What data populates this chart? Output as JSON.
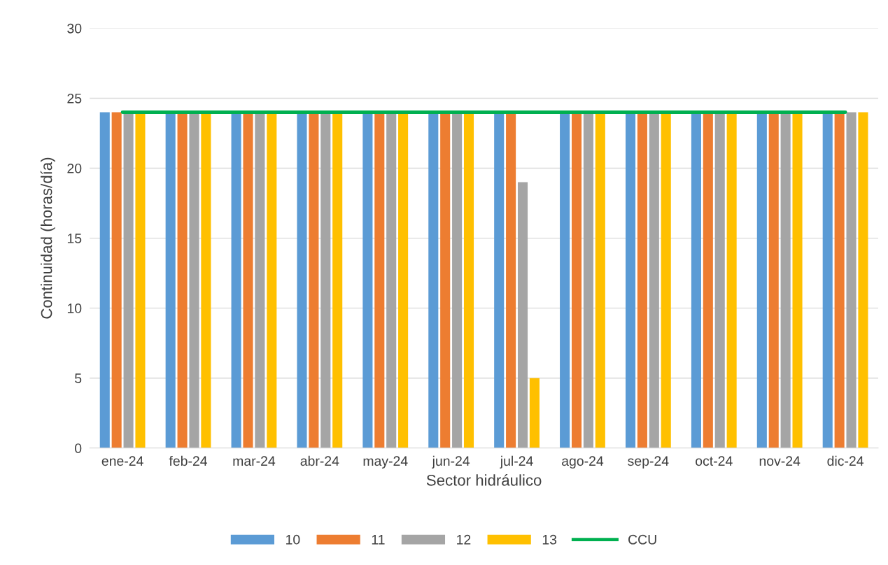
{
  "chart_data": {
    "type": "bar",
    "xlabel": "Sector hidráulico",
    "ylabel": "Continuidad (horas/día)",
    "categories": [
      "ene-24",
      "feb-24",
      "mar-24",
      "abr-24",
      "may-24",
      "jun-24",
      "jul-24",
      "ago-24",
      "sep-24",
      "oct-24",
      "nov-24",
      "dic-24"
    ],
    "series": [
      {
        "name": "10",
        "color": "#5b9bd5",
        "values": [
          24,
          24,
          24,
          24,
          24,
          24,
          24,
          24,
          24,
          24,
          24,
          24
        ]
      },
      {
        "name": "11",
        "color": "#ed7d31",
        "values": [
          24,
          24,
          24,
          24,
          24,
          24,
          24,
          24,
          24,
          24,
          24,
          24
        ]
      },
      {
        "name": "12",
        "color": "#a5a5a5",
        "values": [
          24,
          24,
          24,
          24,
          24,
          24,
          19,
          24,
          24,
          24,
          24,
          24
        ]
      },
      {
        "name": "13",
        "color": "#ffc000",
        "values": [
          24,
          24,
          24,
          24,
          24,
          24,
          5,
          24,
          24,
          24,
          24,
          24
        ]
      },
      {
        "name": "CCU",
        "type": "line",
        "color": "#00b050",
        "values": [
          24,
          24,
          24,
          24,
          24,
          24,
          24,
          24,
          24,
          24,
          24,
          24
        ]
      }
    ],
    "ylim": [
      0,
      30
    ],
    "yticks": [
      0,
      5,
      10,
      15,
      20,
      25,
      30
    ],
    "grid": "y",
    "legend": "bottom"
  }
}
